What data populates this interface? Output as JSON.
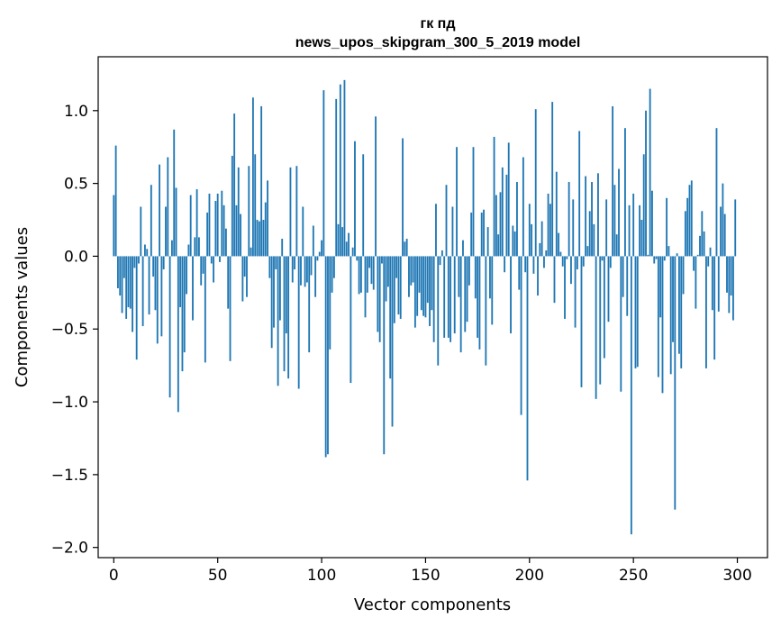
{
  "chart_data": {
    "type": "bar",
    "title_line1": "гк пд",
    "title_line2": "news_upos_skipgram_300_5_2019 model",
    "xlabel": "Vector components",
    "ylabel": "Components values",
    "xlim": [
      -7.5,
      314.5
    ],
    "ylim": [
      -2.07,
      1.37
    ],
    "xticks": [
      0,
      50,
      100,
      150,
      200,
      250,
      300
    ],
    "xtick_labels": [
      "0",
      "50",
      "100",
      "150",
      "200",
      "250",
      "300"
    ],
    "yticks": [
      -2.0,
      -1.5,
      -1.0,
      -0.5,
      0.0,
      0.5,
      1.0
    ],
    "ytick_labels": [
      "−2.0",
      "−1.5",
      "−1.0",
      "−0.5",
      "0.0",
      "0.5",
      "1.0"
    ],
    "bar_color": "#1f77b4",
    "x": "0..299 (component index)",
    "values": [
      0.42,
      0.76,
      -0.22,
      -0.27,
      -0.39,
      -0.15,
      -0.43,
      -0.35,
      -0.36,
      -0.52,
      -0.08,
      -0.71,
      -0.05,
      0.34,
      -0.48,
      0.08,
      0.05,
      -0.4,
      0.49,
      -0.14,
      -0.37,
      -0.6,
      0.63,
      -0.55,
      -0.09,
      0.34,
      0.68,
      -0.97,
      0.11,
      0.87,
      0.47,
      -1.07,
      -0.35,
      -0.79,
      -0.66,
      -0.26,
      0.08,
      0.42,
      -0.44,
      0.13,
      0.46,
      0.13,
      -0.2,
      -0.12,
      -0.73,
      0.3,
      0.43,
      -0.05,
      -0.18,
      0.38,
      0.43,
      -0.04,
      0.45,
      0.35,
      0.19,
      -0.36,
      -0.72,
      0.69,
      0.98,
      0.35,
      0.61,
      0.29,
      -0.31,
      -0.14,
      -0.28,
      0.62,
      0.06,
      1.09,
      0.7,
      0.25,
      0.24,
      1.03,
      0.25,
      0.37,
      0.52,
      -0.15,
      -0.63,
      -0.49,
      -0.09,
      -0.89,
      -0.44,
      0.12,
      -0.79,
      -0.53,
      -0.84,
      0.61,
      -0.18,
      -0.09,
      0.62,
      -0.91,
      -0.2,
      0.34,
      -0.21,
      -0.18,
      -0.66,
      -0.13,
      0.21,
      -0.28,
      -0.03,
      0.03,
      0.11,
      1.14,
      -1.38,
      -1.36,
      -0.64,
      -0.25,
      -0.15,
      1.08,
      0.22,
      1.18,
      0.2,
      1.21,
      0.1,
      0.16,
      -0.87,
      0.06,
      0.79,
      -0.03,
      -0.26,
      -0.25,
      0.7,
      -0.42,
      -0.25,
      -0.08,
      -0.19,
      -0.23,
      0.96,
      -0.52,
      -0.59,
      -0.05,
      -1.36,
      -0.31,
      -0.21,
      -0.84,
      -1.17,
      -0.46,
      -0.15,
      -0.4,
      -0.43,
      0.81,
      0.1,
      0.12,
      -0.28,
      -0.2,
      -0.18,
      -0.49,
      -0.41,
      -0.25,
      -0.37,
      -0.41,
      -0.42,
      -0.32,
      -0.48,
      -0.37,
      -0.59,
      0.36,
      -0.75,
      -0.06,
      0.04,
      -0.56,
      0.49,
      -0.56,
      -0.59,
      0.34,
      -0.53,
      0.75,
      -0.28,
      -0.66,
      0.11,
      -0.52,
      -0.45,
      -0.2,
      0.3,
      0.75,
      -0.29,
      -0.56,
      -0.64,
      0.3,
      0.32,
      -0.75,
      0.2,
      -0.29,
      -0.47,
      0.82,
      0.42,
      0.15,
      0.44,
      0.61,
      -0.11,
      0.56,
      0.78,
      -0.53,
      0.21,
      0.17,
      0.51,
      -0.23,
      -1.09,
      0.68,
      -0.11,
      -1.54,
      0.36,
      0.22,
      -0.12,
      1.01,
      -0.27,
      0.09,
      0.24,
      -0.08,
      0.04,
      0.43,
      0.36,
      1.06,
      -0.32,
      0.58,
      0.16,
      0.03,
      -0.07,
      -0.43,
      -0.02,
      0.51,
      -0.19,
      0.39,
      -0.49,
      -0.09,
      0.86,
      -0.9,
      -0.07,
      0.55,
      0.07,
      0.31,
      0.51,
      0.22,
      -0.98,
      0.57,
      -0.88,
      -0.03,
      -0.7,
      0.39,
      -0.45,
      -0.08,
      1.03,
      0.49,
      0.15,
      0.6,
      -0.93,
      -0.28,
      0.88,
      -0.41,
      0.35,
      -1.91,
      0.43,
      -0.77,
      -0.76,
      0.35,
      0.25,
      0.7,
      1.0,
      0.01,
      1.15,
      0.45,
      -0.05,
      -0.02,
      -0.83,
      -0.42,
      -0.94,
      -0.03,
      0.4,
      0.07,
      -0.81,
      -0.59,
      -1.74,
      0.02,
      -0.67,
      -0.77,
      -0.26,
      0.31,
      0.4,
      0.49,
      0.52,
      -0.1,
      -0.36,
      0.01,
      0.14,
      0.31,
      0.17,
      -0.77,
      -0.07,
      0.06,
      -0.37,
      -0.71,
      0.88,
      -0.38,
      0.34,
      0.5,
      0.29,
      -0.25,
      -0.39,
      -0.27,
      -0.44,
      0.39
    ]
  }
}
